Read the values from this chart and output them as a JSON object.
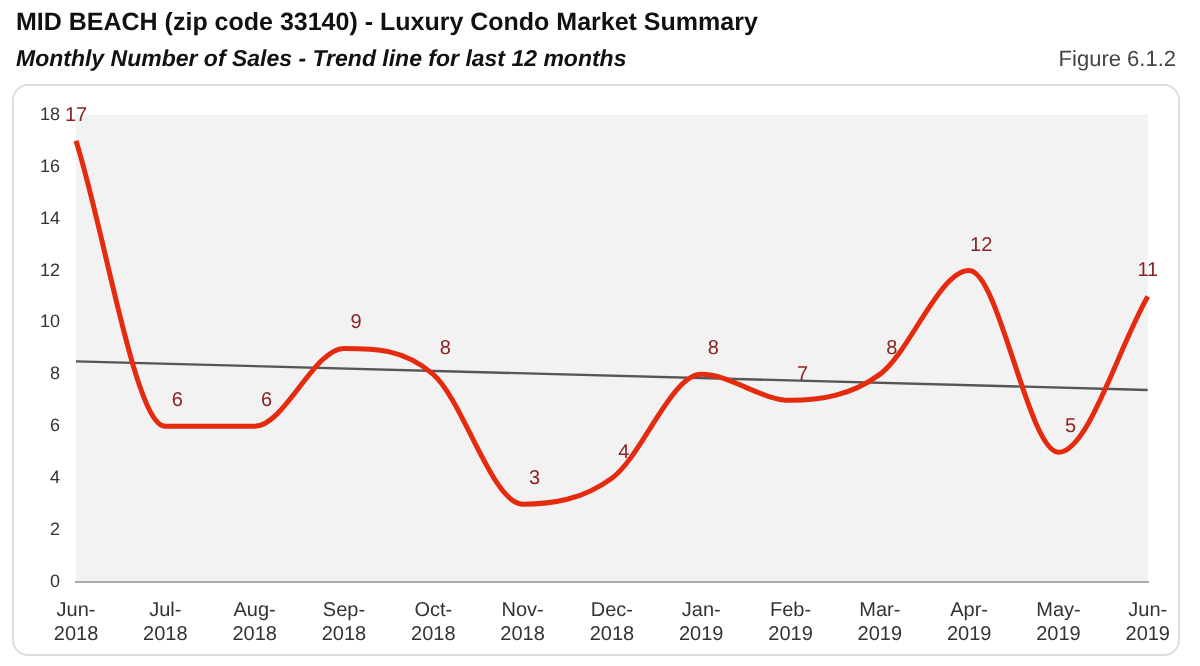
{
  "chart_data": {
    "type": "line",
    "title": "MID BEACH (zip code 33140) - Luxury Condo Market Summary",
    "subtitle": "Monthly Number of Sales - Trend line for last 12 months",
    "annotations": [
      "Figure 6.1.2"
    ],
    "categories": [
      "Jun-2018",
      "Jul-2018",
      "Aug-2018",
      "Sep-2018",
      "Oct-2018",
      "Nov-2018",
      "Dec-2018",
      "Jan-2019",
      "Feb-2019",
      "Mar-2019",
      "Apr-2019",
      "May-2019",
      "Jun-2019"
    ],
    "series": [
      {
        "color": "#e52b0f",
        "values": [
          17,
          6,
          6,
          9,
          8,
          3,
          4,
          8,
          7,
          8,
          12,
          5,
          11
        ],
        "value_labels": [
          "17",
          "6",
          "6",
          "9",
          "8",
          "3",
          "4",
          "8",
          "7",
          "8",
          "12",
          "5",
          "11"
        ]
      },
      {
        "type": "line",
        "color": "#555555",
        "values": [
          8.5,
          null,
          null,
          null,
          null,
          null,
          null,
          null,
          null,
          null,
          null,
          null,
          7.4
        ]
      }
    ],
    "ylim": [
      0,
      18
    ],
    "yticks": [
      0,
      2,
      4,
      6,
      8,
      10,
      12,
      14,
      16,
      18
    ],
    "grid": false,
    "legend": false,
    "marker": "none"
  }
}
